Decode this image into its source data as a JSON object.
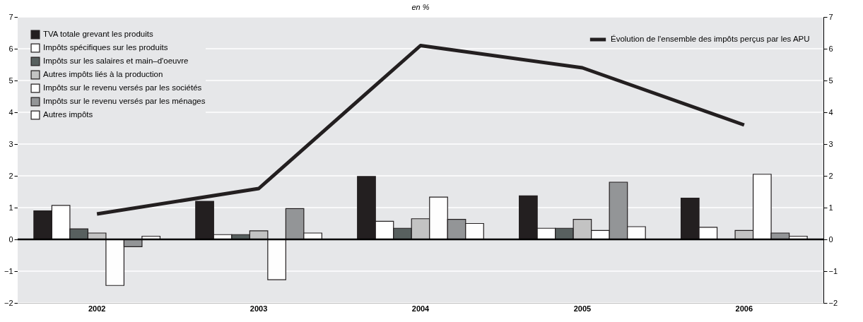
{
  "chart_data": {
    "type": "bar",
    "subtitle": "en %",
    "categories": [
      "2002",
      "2003",
      "2004",
      "2005",
      "2006"
    ],
    "series": [
      {
        "name": "TVA totale grevant les produits",
        "color": "#231f20",
        "values": [
          0.9,
          1.2,
          1.98,
          1.37,
          1.3
        ]
      },
      {
        "name": "Impôts spécifiques sur les produits",
        "color": "#ffffff",
        "values": [
          1.07,
          0.15,
          0.57,
          0.35,
          0.38
        ]
      },
      {
        "name": "Impôts sur les salaires et main–d'oeuvre",
        "color": "#58605f",
        "values": [
          0.33,
          0.15,
          0.35,
          0.35,
          null
        ]
      },
      {
        "name": "Autres impôts liés à la production",
        "color": "#c3c3c3",
        "values": [
          0.2,
          0.27,
          0.65,
          0.63,
          0.28
        ]
      },
      {
        "name": "Impôts sur le revenu versés par les sociétés",
        "color": "#fefefe",
        "values": [
          -1.45,
          -1.27,
          1.33,
          0.28,
          2.05
        ]
      },
      {
        "name": "Impôts sur le revenu versés par les ménages",
        "color": "#939597",
        "values": [
          -0.23,
          0.97,
          0.63,
          1.8,
          0.2
        ]
      },
      {
        "name": "Autres impôts",
        "color": "#fdfdfd",
        "values": [
          0.1,
          0.2,
          0.5,
          0.4,
          0.1
        ]
      },
      {
        "name": "Évolution de l'ensemble des impôts perçus par les APU",
        "type": "line",
        "color": "#231f20",
        "values": [
          0.8,
          1.6,
          6.1,
          5.4,
          3.6
        ]
      }
    ],
    "ylim": [
      -2,
      7
    ],
    "yticks": [
      -2,
      -1,
      0,
      1,
      2,
      3,
      4,
      5,
      6,
      7
    ],
    "y2lim": [
      -2,
      7
    ],
    "y2ticks": [
      -2,
      -1,
      0,
      1,
      2,
      3,
      4,
      5,
      6,
      7
    ],
    "grid": "y",
    "legend": "top left",
    "ref_lines": [
      {
        "axis": "y",
        "value": 0,
        "color": "#000000"
      }
    ]
  }
}
